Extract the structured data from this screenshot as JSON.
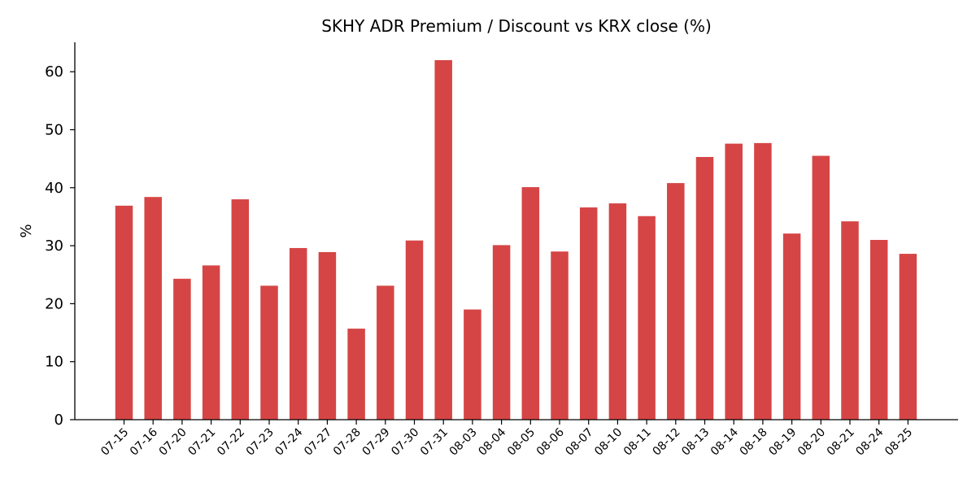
{
  "chart_data": {
    "type": "bar",
    "title": "SKHY ADR Premium / Discount vs KRX close (%)",
    "xlabel": "",
    "ylabel": "%",
    "ylim": [
      0,
      65
    ],
    "yticks": [
      0,
      10,
      20,
      30,
      40,
      50,
      60
    ],
    "grid": false,
    "bar_color": "#d64545",
    "categories": [
      "07-15",
      "07-16",
      "07-20",
      "07-21",
      "07-22",
      "07-23",
      "07-24",
      "07-27",
      "07-28",
      "07-29",
      "07-30",
      "07-31",
      "08-03",
      "08-04",
      "08-05",
      "08-06",
      "08-07",
      "08-10",
      "08-11",
      "08-12",
      "08-13",
      "08-14",
      "08-18",
      "08-19",
      "08-20",
      "08-21",
      "08-24",
      "08-25"
    ],
    "values": [
      36.9,
      38.4,
      24.3,
      26.6,
      38.0,
      23.1,
      29.6,
      28.9,
      15.7,
      23.1,
      30.9,
      62.0,
      19.0,
      30.1,
      40.1,
      29.0,
      36.6,
      37.3,
      35.1,
      40.8,
      45.3,
      47.6,
      47.7,
      32.1,
      45.5,
      34.2,
      31.0,
      28.6
    ]
  }
}
